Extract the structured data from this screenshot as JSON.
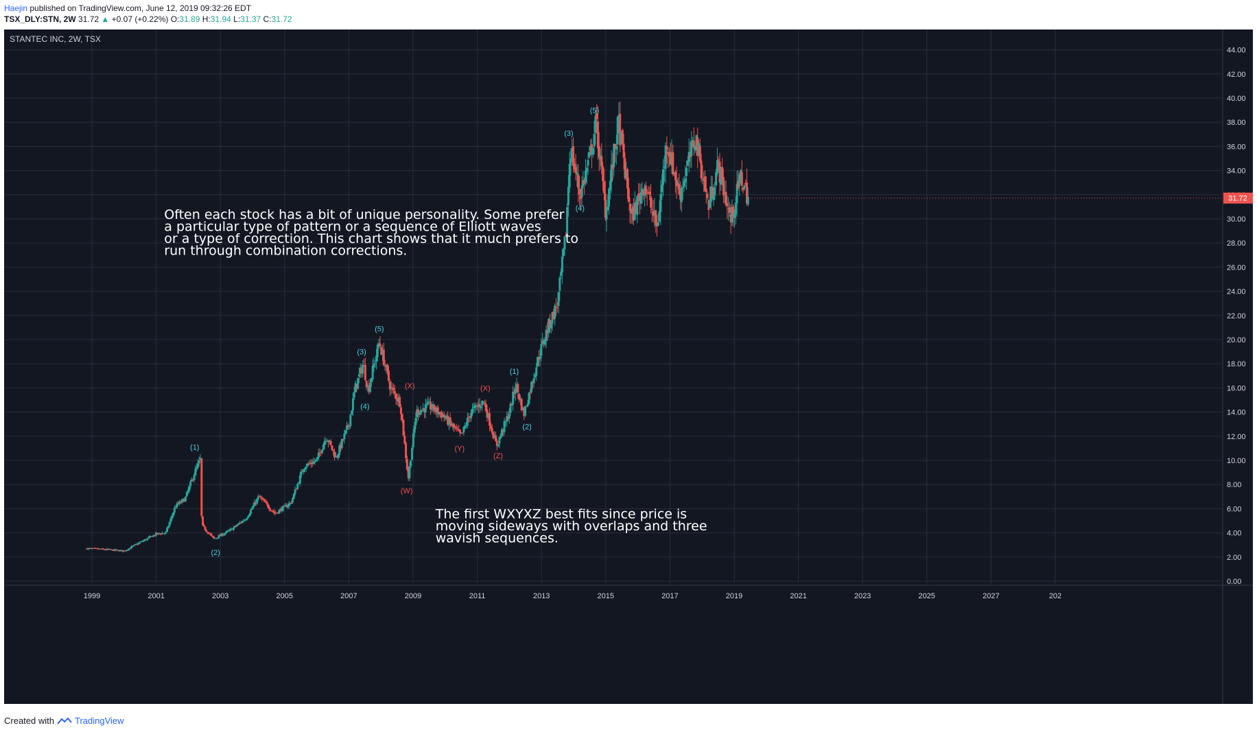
{
  "header": {
    "author": "Haejin",
    "published": "published on TradingView.com, June 12, 2019 09:32:26 EDT",
    "symbol": "TSX_DLY:STN, 2W",
    "last": "31.72",
    "change": "+0.07 (+0.22%)",
    "o_label": "O:",
    "o": "31.89",
    "h_label": "H:",
    "h": "31.94",
    "l_label": "L:",
    "l": "31.37",
    "c_label": "C:",
    "c": "31.72"
  },
  "footer": {
    "created": "Created with",
    "brand": "TradingView"
  },
  "colors": {
    "background": "#131722",
    "up": "#26a69a",
    "down": "#ef5350",
    "wave_cyan": "#4dd0e1",
    "wave_red": "#ef5350",
    "grid": "#2a2e39",
    "text": "#d1d4dc"
  },
  "chart_data": {
    "type": "candlestick",
    "title": "STANTEC INC, 2W, TSX",
    "ylim": [
      0,
      45
    ],
    "yticks": [
      "0.00",
      "2.00",
      "4.00",
      "6.00",
      "8.00",
      "10.00",
      "12.00",
      "14.00",
      "16.00",
      "18.00",
      "20.00",
      "22.00",
      "24.00",
      "26.00",
      "28.00",
      "30.00",
      "32.00",
      "34.00",
      "36.00",
      "38.00",
      "40.00",
      "42.00",
      "44.00"
    ],
    "xticks": [
      "1999",
      "2001",
      "2003",
      "2005",
      "2007",
      "2009",
      "2011",
      "2013",
      "2015",
      "2017",
      "2019",
      "2021",
      "2023",
      "2025",
      "2027",
      "202"
    ],
    "last_price_label": "31.72",
    "grid": true,
    "price_path": [
      {
        "t": 1998.85,
        "p": 2.7
      },
      {
        "t": 1999.5,
        "p": 2.6
      },
      {
        "t": 2000.0,
        "p": 2.5
      },
      {
        "t": 2000.5,
        "p": 3.2
      },
      {
        "t": 2001.0,
        "p": 3.9
      },
      {
        "t": 2001.3,
        "p": 4.0
      },
      {
        "t": 2001.6,
        "p": 6.2
      },
      {
        "t": 2001.9,
        "p": 6.8
      },
      {
        "t": 2002.2,
        "p": 9.0
      },
      {
        "t": 2002.38,
        "p": 10.1
      },
      {
        "t": 2002.42,
        "p": 4.6
      },
      {
        "t": 2002.8,
        "p": 3.5
      },
      {
        "t": 2003.3,
        "p": 4.2
      },
      {
        "t": 2003.8,
        "p": 5.2
      },
      {
        "t": 2004.2,
        "p": 7.0
      },
      {
        "t": 2004.7,
        "p": 5.6
      },
      {
        "t": 2005.2,
        "p": 6.5
      },
      {
        "t": 2005.6,
        "p": 9.5
      },
      {
        "t": 2006.0,
        "p": 10.0
      },
      {
        "t": 2006.3,
        "p": 12.0
      },
      {
        "t": 2006.6,
        "p": 10.2
      },
      {
        "t": 2007.0,
        "p": 13.0
      },
      {
        "t": 2007.2,
        "p": 16.0
      },
      {
        "t": 2007.45,
        "p": 18.0
      },
      {
        "t": 2007.6,
        "p": 15.8
      },
      {
        "t": 2007.95,
        "p": 19.8
      },
      {
        "t": 2008.3,
        "p": 16.0
      },
      {
        "t": 2008.6,
        "p": 14.8
      },
      {
        "t": 2008.85,
        "p": 8.5
      },
      {
        "t": 2009.1,
        "p": 14.0
      },
      {
        "t": 2009.5,
        "p": 14.5
      },
      {
        "t": 2009.9,
        "p": 13.8
      },
      {
        "t": 2010.5,
        "p": 12.0
      },
      {
        "t": 2010.8,
        "p": 14.0
      },
      {
        "t": 2011.2,
        "p": 14.9
      },
      {
        "t": 2011.6,
        "p": 11.2
      },
      {
        "t": 2012.0,
        "p": 14.0
      },
      {
        "t": 2012.2,
        "p": 16.3
      },
      {
        "t": 2012.45,
        "p": 13.8
      },
      {
        "t": 2012.9,
        "p": 18.5
      },
      {
        "t": 2013.2,
        "p": 21.0
      },
      {
        "t": 2013.5,
        "p": 23.0
      },
      {
        "t": 2013.75,
        "p": 28.5
      },
      {
        "t": 2013.9,
        "p": 36.0
      },
      {
        "t": 2014.2,
        "p": 32.0
      },
      {
        "t": 2014.5,
        "p": 35.0
      },
      {
        "t": 2014.7,
        "p": 38.0
      },
      {
        "t": 2015.0,
        "p": 30.5
      },
      {
        "t": 2015.4,
        "p": 38.0
      },
      {
        "t": 2015.8,
        "p": 30.0
      },
      {
        "t": 2016.2,
        "p": 33.0
      },
      {
        "t": 2016.6,
        "p": 29.2
      },
      {
        "t": 2016.9,
        "p": 36.5
      },
      {
        "t": 2017.3,
        "p": 32.0
      },
      {
        "t": 2017.8,
        "p": 36.8
      },
      {
        "t": 2018.2,
        "p": 31.0
      },
      {
        "t": 2018.5,
        "p": 34.5
      },
      {
        "t": 2018.9,
        "p": 29.8
      },
      {
        "t": 2019.2,
        "p": 33.5
      },
      {
        "t": 2019.45,
        "p": 31.72
      }
    ],
    "annotations": [
      {
        "text": "(1)",
        "t": 2002.2,
        "p": 11.1,
        "color": "cyan"
      },
      {
        "text": "(2)",
        "t": 2002.85,
        "p": 2.4,
        "color": "cyan"
      },
      {
        "text": "(3)",
        "t": 2007.4,
        "p": 19.0,
        "color": "cyan"
      },
      {
        "text": "(4)",
        "t": 2007.5,
        "p": 14.5,
        "color": "cyan"
      },
      {
        "text": "(5)",
        "t": 2007.95,
        "p": 20.9,
        "color": "cyan"
      },
      {
        "text": "(X)",
        "t": 2008.9,
        "p": 16.2,
        "color": "red"
      },
      {
        "text": "(W)",
        "t": 2008.8,
        "p": 7.5,
        "color": "red"
      },
      {
        "text": "(Y)",
        "t": 2010.45,
        "p": 11.0,
        "color": "red"
      },
      {
        "text": "(X)",
        "t": 2011.25,
        "p": 16.0,
        "color": "red"
      },
      {
        "text": "(Z)",
        "t": 2011.65,
        "p": 10.4,
        "color": "red"
      },
      {
        "text": "(1)",
        "t": 2012.15,
        "p": 17.4,
        "color": "cyan"
      },
      {
        "text": "(2)",
        "t": 2012.55,
        "p": 12.8,
        "color": "cyan"
      },
      {
        "text": "(3)",
        "t": 2013.85,
        "p": 37.1,
        "color": "cyan"
      },
      {
        "text": "(4)",
        "t": 2014.2,
        "p": 30.9,
        "color": "cyan"
      },
      {
        "text": "(5)",
        "t": 2014.65,
        "p": 39.0,
        "color": "cyan"
      }
    ],
    "notes": [
      {
        "lines": [
          "Often each stock has a bit of unique personality. Some prefer",
          "a particular type of pattern or a sequence of Elliott waves",
          "or a type of correction. This chart shows that it much prefers to",
          "run through combination corrections."
        ],
        "t": 2001.25,
        "p": 30.0
      },
      {
        "lines": [
          "The first WXYXZ best fits since price is",
          "moving sideways with overlaps and three",
          "wavish sequences."
        ],
        "t": 2009.7,
        "p": 5.2
      }
    ]
  }
}
